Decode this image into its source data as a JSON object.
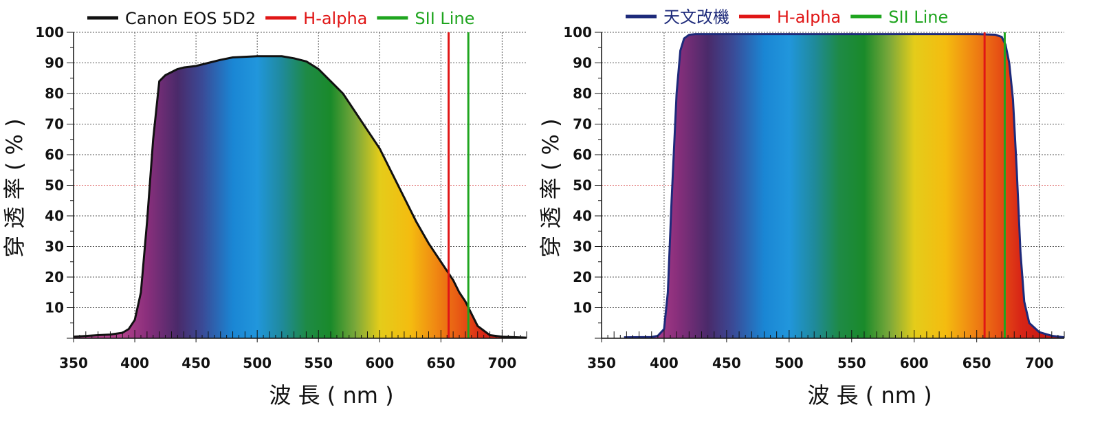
{
  "colors": {
    "hAlpha": "#e01616",
    "siiLine": "#1fa51f",
    "camera": "#111111",
    "modified": "#1d2a7a",
    "grid": "#555555",
    "midline": "#e07070"
  },
  "spectrum_stops": [
    {
      "nm": 390,
      "color": "#b0408a"
    },
    {
      "nm": 410,
      "color": "#8a2f7c"
    },
    {
      "nm": 435,
      "color": "#4a2a6a"
    },
    {
      "nm": 455,
      "color": "#3a4a96"
    },
    {
      "nm": 480,
      "color": "#1a86d4"
    },
    {
      "nm": 500,
      "color": "#2196dc"
    },
    {
      "nm": 520,
      "color": "#1f8a9c"
    },
    {
      "nm": 540,
      "color": "#1e8a46"
    },
    {
      "nm": 560,
      "color": "#1a8a2a"
    },
    {
      "nm": 580,
      "color": "#7aa83a"
    },
    {
      "nm": 600,
      "color": "#e4cc1a"
    },
    {
      "nm": 625,
      "color": "#f4bc10"
    },
    {
      "nm": 645,
      "color": "#f08a12"
    },
    {
      "nm": 665,
      "color": "#e85814"
    },
    {
      "nm": 685,
      "color": "#d82616"
    },
    {
      "nm": 710,
      "color": "#c41414"
    }
  ],
  "chart_data": [
    {
      "type": "area",
      "legend": [
        "Canon EOS 5D2",
        "H-alpha",
        "SII Line"
      ],
      "xlabel": "波 長 ( nm )",
      "ylabel": "穿 透 率 ( % )",
      "xlim": [
        350,
        720
      ],
      "ylim": [
        0,
        100
      ],
      "xticks": [
        350,
        400,
        450,
        500,
        550,
        600,
        650,
        700
      ],
      "yticks": [
        10,
        20,
        30,
        40,
        50,
        60,
        70,
        80,
        90,
        100
      ],
      "vlines": [
        {
          "name": "H-alpha",
          "x": 656.3
        },
        {
          "name": "SII Line",
          "x": 672.4
        }
      ],
      "series": [
        {
          "name": "Canon EOS 5D2",
          "x": [
            350,
            370,
            380,
            390,
            395,
            400,
            405,
            410,
            415,
            420,
            425,
            430,
            435,
            440,
            450,
            460,
            470,
            480,
            490,
            500,
            510,
            520,
            530,
            540,
            550,
            560,
            570,
            575,
            580,
            590,
            600,
            610,
            620,
            630,
            640,
            650,
            660,
            665,
            670,
            675,
            680,
            685,
            690,
            700,
            720
          ],
          "y": [
            0.5,
            1,
            1.2,
            1.8,
            3,
            6,
            15,
            38,
            65,
            84,
            86,
            87,
            88,
            88.5,
            89,
            90,
            91,
            91.8,
            92,
            92.2,
            92.2,
            92.2,
            91.5,
            90.5,
            88,
            84,
            80,
            77,
            74,
            68,
            62,
            54,
            46,
            38,
            31,
            25,
            19,
            15,
            12,
            8,
            4,
            2.5,
            1,
            0.5,
            0.2
          ]
        }
      ]
    },
    {
      "type": "area",
      "legend": [
        "天文改機",
        "H-alpha",
        "SII Line"
      ],
      "xlabel": "波 長 ( nm )",
      "ylabel": "穿 透 率 ( % )",
      "xlim": [
        350,
        720
      ],
      "ylim": [
        0,
        100
      ],
      "xticks": [
        350,
        400,
        450,
        500,
        550,
        600,
        650,
        700
      ],
      "yticks": [
        10,
        20,
        30,
        40,
        50,
        60,
        70,
        80,
        90,
        100
      ],
      "vlines": [
        {
          "name": "H-alpha",
          "x": 656.3
        },
        {
          "name": "SII Line",
          "x": 672.4
        }
      ],
      "series": [
        {
          "name": "天文改機",
          "x": [
            368,
            390,
            395,
            400,
            403,
            406,
            410,
            413,
            416,
            420,
            425,
            450,
            500,
            550,
            600,
            650,
            665,
            670,
            673,
            676,
            679,
            682,
            685,
            688,
            692,
            700,
            710,
            720
          ],
          "y": [
            0.3,
            0.4,
            0.8,
            3,
            15,
            45,
            80,
            94,
            98,
            99.2,
            99.4,
            99.4,
            99.4,
            99.4,
            99.4,
            99.4,
            99.2,
            98.5,
            96,
            90,
            78,
            55,
            28,
            12,
            5,
            2,
            0.8,
            0.3
          ]
        }
      ]
    }
  ]
}
